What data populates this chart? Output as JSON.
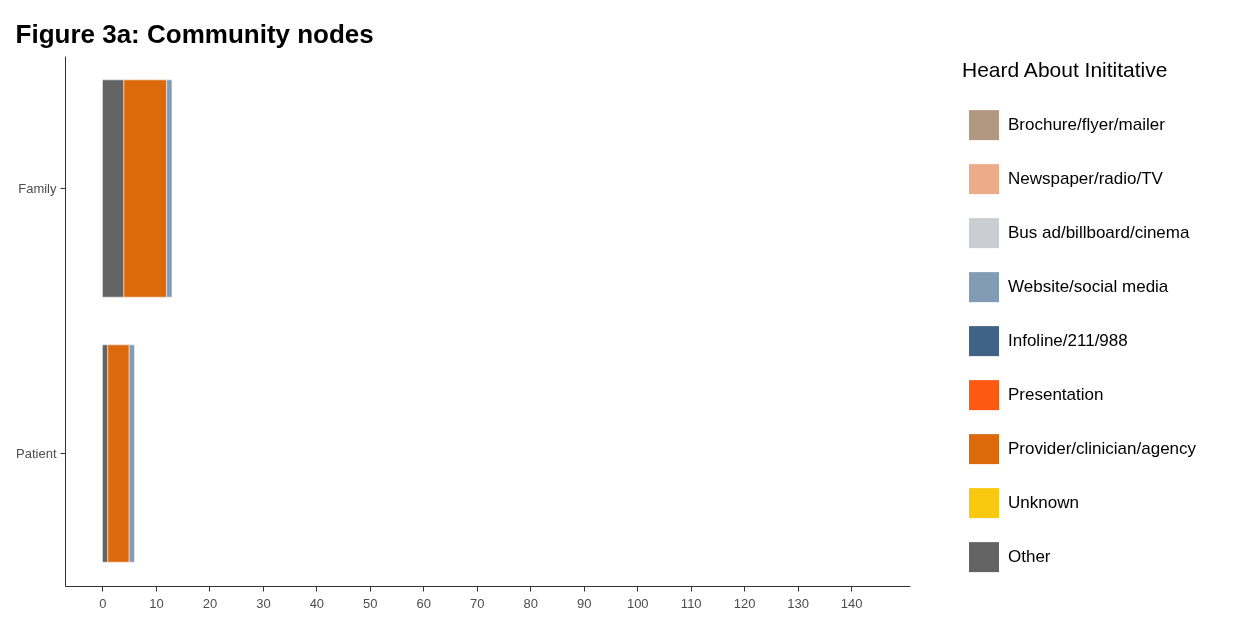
{
  "chart_data": {
    "type": "bar",
    "title": "Figure 3a: Community nodes",
    "legend_title": "Heard About Inititative",
    "orientation": "horizontal",
    "stacked": true,
    "categories": [
      "Family",
      "Patient"
    ],
    "series": [
      {
        "name": "Other",
        "color": "#636363",
        "values": [
          4,
          1
        ]
      },
      {
        "name": "Unknown",
        "color": "#f8c90e",
        "values": [
          0,
          0
        ]
      },
      {
        "name": "Provider/clinician/agency",
        "color": "#dc6a0c",
        "values": [
          8,
          4
        ]
      },
      {
        "name": "Presentation",
        "color": "#fc5a12",
        "values": [
          0,
          0
        ]
      },
      {
        "name": "Infoline/211/988",
        "color": "#3f6386",
        "values": [
          0,
          0
        ]
      },
      {
        "name": "Website/social media",
        "color": "#819cb4",
        "values": [
          1,
          1
        ]
      },
      {
        "name": "Bus ad/billboard/cinema",
        "color": "#cacdd1",
        "values": [
          0,
          0
        ]
      },
      {
        "name": "Newspaper/radio/TV",
        "color": "#edab89",
        "values": [
          0,
          0
        ]
      },
      {
        "name": "Brochure/flyer/mailer",
        "color": "#b29781",
        "values": [
          0,
          0
        ]
      }
    ],
    "xlim": [
      -7,
      151
    ],
    "xticks": [
      0,
      10,
      20,
      30,
      40,
      50,
      60,
      70,
      80,
      90,
      100,
      110,
      120,
      130,
      140
    ],
    "grid": false,
    "legend": "right"
  }
}
